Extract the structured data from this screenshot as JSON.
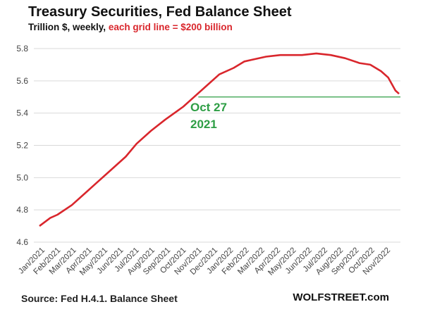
{
  "chart_data": {
    "type": "line",
    "title": "Treasury Securities, Fed Balance Sheet",
    "subtitle_prefix": "Trillion $, weekly,",
    "subtitle_highlight": "each grid line = $200 billion",
    "ylabel": "Trillion $",
    "ylim": [
      4.6,
      5.8
    ],
    "yticks": [
      "4.6",
      "4.8",
      "5.0",
      "5.2",
      "5.4",
      "5.6",
      "5.8"
    ],
    "xlim_weeks": [
      0,
      100
    ],
    "xtick_labels": [
      "Jan/2021",
      "Feb/2021",
      "Mar/2021",
      "Apr/2021",
      "May/2021",
      "Jun/2021",
      "Jul/2021",
      "Aug/2021",
      "Sep/2021",
      "Oct/2021",
      "Nov/2021",
      "Dec/2021",
      "Jan/2022",
      "Feb/2022",
      "Mar/2022",
      "Apr/2022",
      "May/2022",
      "Jun/2022",
      "Jul/2022",
      "Aug/2022",
      "Sep/2022",
      "Oct/2022",
      "Nov/2022"
    ],
    "grid": true,
    "series": [
      {
        "name": "Treasury Securities",
        "color": "#d9262c",
        "weeks": [
          0,
          3,
          5,
          9,
          13,
          16,
          20,
          24,
          27,
          31,
          35,
          40,
          42,
          46,
          50,
          54,
          57,
          59,
          63,
          67,
          73,
          77,
          81,
          85,
          89,
          92,
          95,
          97,
          99,
          100
        ],
        "values": [
          4.7,
          4.75,
          4.77,
          4.83,
          4.91,
          4.97,
          5.05,
          5.13,
          5.21,
          5.29,
          5.36,
          5.44,
          5.48,
          5.56,
          5.64,
          5.68,
          5.72,
          5.73,
          5.75,
          5.76,
          5.76,
          5.77,
          5.76,
          5.74,
          5.71,
          5.7,
          5.66,
          5.62,
          5.54,
          5.52
        ]
      }
    ],
    "reference_line": {
      "value": 5.5,
      "from_week": 33,
      "color": "#2e9e45"
    },
    "annotation": {
      "line1": "Oct 27",
      "line2": "2021",
      "color": "#2e9e45"
    }
  },
  "footer": {
    "source": "Source: Fed H.4.1. Balance Sheet",
    "brand": "WOLFSTREET.com"
  }
}
